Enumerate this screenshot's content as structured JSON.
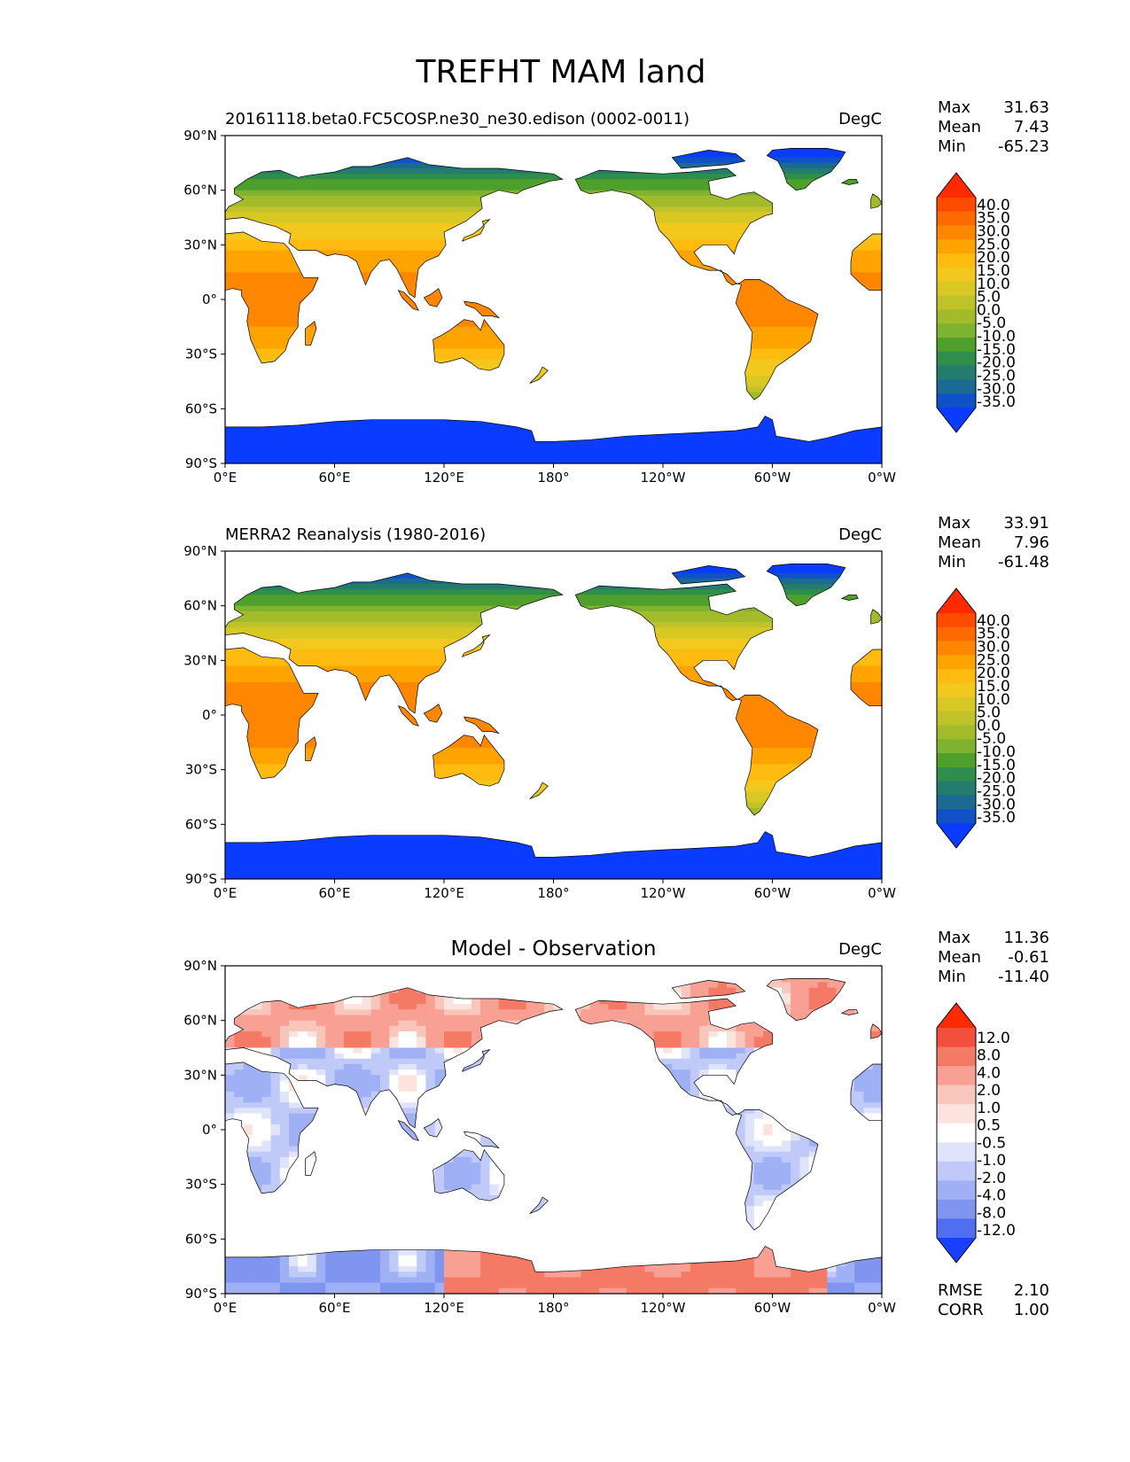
{
  "figure_title": "TREFHT MAM land",
  "chart_data": [
    {
      "type": "heatmap",
      "panel": "model",
      "title_left": "20161118.beta0.FC5COSP.ne30_ne30.edison (0002-0011)",
      "title_center": "",
      "units": "DegC",
      "stats": [
        {
          "label": "Max",
          "value": "31.63"
        },
        {
          "label": "Mean",
          "value": "7.43"
        },
        {
          "label": "Min",
          "value": "-65.23"
        }
      ],
      "colorbar": {
        "extend": "both",
        "levels": [
          "40.0",
          "35.0",
          "30.0",
          "25.0",
          "20.0",
          "15.0",
          "10.0",
          "5.0",
          "0.0",
          "-5.0",
          "-10.0",
          "-15.0",
          "-20.0",
          "-25.0",
          "-30.0",
          "-35.0"
        ],
        "colors": [
          "#ff2a00",
          "#ff4b00",
          "#ff6a00",
          "#ff8700",
          "#ffa300",
          "#ffbb10",
          "#f2c81e",
          "#d8c823",
          "#bfc228",
          "#a3bb2a",
          "#7fb22e",
          "#4f9f2c",
          "#2f8f4a",
          "#237c6e",
          "#1a6a94",
          "#1151c8",
          "#0a3cff"
        ]
      },
      "xlim": [
        0,
        360
      ],
      "ylim": [
        -90,
        90
      ],
      "xticklabels": [
        "0°E",
        "60°E",
        "120°E",
        "180°",
        "120°W",
        "60°W",
        "0°W"
      ],
      "yticklabels": [
        "90°N",
        "60°N",
        "30°N",
        "0°",
        "30°S",
        "60°S",
        "90°S"
      ],
      "footer_stats": []
    },
    {
      "type": "heatmap",
      "panel": "observation",
      "title_left": "MERRA2 Reanalysis (1980-2016)",
      "title_center": "",
      "units": "DegC",
      "stats": [
        {
          "label": "Max",
          "value": "33.91"
        },
        {
          "label": "Mean",
          "value": "7.96"
        },
        {
          "label": "Min",
          "value": "-61.48"
        }
      ],
      "colorbar": {
        "extend": "both",
        "levels": [
          "40.0",
          "35.0",
          "30.0",
          "25.0",
          "20.0",
          "15.0",
          "10.0",
          "5.0",
          "0.0",
          "-5.0",
          "-10.0",
          "-15.0",
          "-20.0",
          "-25.0",
          "-30.0",
          "-35.0"
        ],
        "colors": [
          "#ff2a00",
          "#ff4b00",
          "#ff6a00",
          "#ff8700",
          "#ffa300",
          "#ffbb10",
          "#f2c81e",
          "#d8c823",
          "#bfc228",
          "#a3bb2a",
          "#7fb22e",
          "#4f9f2c",
          "#2f8f4a",
          "#237c6e",
          "#1a6a94",
          "#1151c8",
          "#0a3cff"
        ]
      },
      "xlim": [
        0,
        360
      ],
      "ylim": [
        -90,
        90
      ],
      "xticklabels": [
        "0°E",
        "60°E",
        "120°E",
        "180°",
        "120°W",
        "60°W",
        "0°W"
      ],
      "yticklabels": [
        "90°N",
        "60°N",
        "30°N",
        "0°",
        "30°S",
        "60°S",
        "90°S"
      ],
      "footer_stats": []
    },
    {
      "type": "heatmap",
      "panel": "difference",
      "title_left": "",
      "title_center": "Model - Observation",
      "units": "DegC",
      "stats": [
        {
          "label": "Max",
          "value": "11.36"
        },
        {
          "label": "Mean",
          "value": "-0.61"
        },
        {
          "label": "Min",
          "value": "-11.40"
        }
      ],
      "colorbar": {
        "extend": "both",
        "levels": [
          "12.0",
          "8.0",
          "4.0",
          "2.0",
          "1.0",
          "0.5",
          "-0.5",
          "-1.0",
          "-2.0",
          "-4.0",
          "-8.0",
          "-12.0"
        ],
        "colors": [
          "#ff2a00",
          "#f2503c",
          "#f47a66",
          "#f7a093",
          "#f9c6bc",
          "#fce3de",
          "#ffffff",
          "#dfe4fb",
          "#bfcaf8",
          "#9fb0f4",
          "#7f95f0",
          "#4f6ff0",
          "#1a40ff"
        ]
      },
      "xlim": [
        0,
        360
      ],
      "ylim": [
        -90,
        90
      ],
      "xticklabels": [
        "0°E",
        "60°E",
        "120°E",
        "180°",
        "120°W",
        "60°W",
        "0°W"
      ],
      "yticklabels": [
        "90°N",
        "60°N",
        "30°N",
        "0°",
        "30°S",
        "60°S",
        "90°S"
      ],
      "footer_stats": [
        {
          "label": "RMSE",
          "value": "2.10"
        },
        {
          "label": "CORR",
          "value": "1.00"
        }
      ]
    }
  ]
}
